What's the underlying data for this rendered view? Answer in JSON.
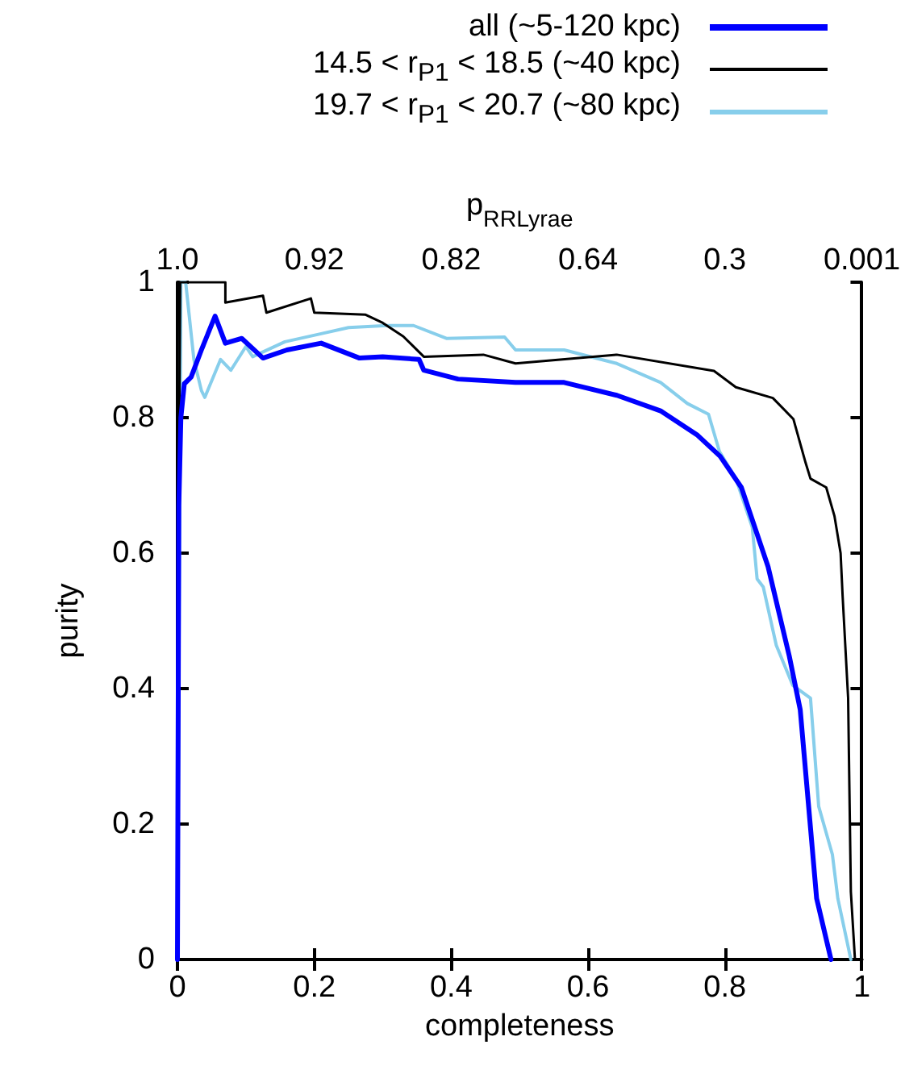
{
  "chart_data": {
    "type": "line",
    "xlabel": "completeness",
    "ylabel": "purity",
    "x2label": "p$_{RRLyrae}$",
    "xlim": [
      0,
      1
    ],
    "xticks": [
      0,
      0.2,
      0.4,
      0.6,
      0.8,
      1
    ],
    "ylim": [
      0,
      1
    ],
    "yticks": [
      0,
      0.2,
      0.4,
      0.6,
      0.8,
      1
    ],
    "annotations": [
      "1.0",
      "0.92",
      "0.82",
      "0.64",
      "0.3",
      "0.001"
    ],
    "legend": "top right",
    "grid": false,
    "marker": "none",
    "line_style": "solid",
    "series": [
      {
        "name": "all (~5-120 kpc)",
        "color": "#0000ff",
        "x": [
          0,
          0.002,
          0.005,
          0.01,
          0.02,
          0.035,
          0.055,
          0.07,
          0.094,
          0.125,
          0.16,
          0.21,
          0.266,
          0.3,
          0.353,
          0.36,
          0.41,
          0.494,
          0.565,
          0.642,
          0.706,
          0.76,
          0.793,
          0.824,
          0.863,
          0.894,
          0.91,
          0.934,
          0.955
        ],
        "values": [
          0,
          0.67,
          0.8,
          0.85,
          0.86,
          0.9,
          0.95,
          0.91,
          0.917,
          0.888,
          0.9,
          0.91,
          0.888,
          0.89,
          0.886,
          0.87,
          0.857,
          0.852,
          0.852,
          0.833,
          0.81,
          0.774,
          0.743,
          0.697,
          0.58,
          0.448,
          0.369,
          0.09,
          0
        ]
      },
      {
        "name": "14.5 < r$_{P1}$ < 18.5 (~40 kpc)",
        "color": "#000000",
        "x": [
          0,
          0.002,
          0.004,
          0.07,
          0.07,
          0.125,
          0.13,
          0.195,
          0.2,
          0.275,
          0.3,
          0.33,
          0.36,
          0.447,
          0.494,
          0.642,
          0.784,
          0.816,
          0.87,
          0.9,
          0.918,
          0.925,
          0.948,
          0.96,
          0.969,
          0.972,
          0.98,
          0.984,
          0.99
        ],
        "values": [
          0,
          0.7,
          1,
          1,
          0.97,
          0.98,
          0.955,
          0.976,
          0.955,
          0.952,
          0.94,
          0.92,
          0.89,
          0.893,
          0.88,
          0.893,
          0.869,
          0.845,
          0.829,
          0.798,
          0.733,
          0.71,
          0.697,
          0.655,
          0.6,
          0.536,
          0.386,
          0.1,
          0
        ]
      },
      {
        "name": "19.7 < r$_{P1}$ < 20.7 (~80 kpc)",
        "color": "#87ceeb",
        "x": [
          0,
          0.003,
          0.005,
          0.012,
          0.024,
          0.035,
          0.04,
          0.063,
          0.078,
          0.1,
          0.11,
          0.157,
          0.21,
          0.25,
          0.306,
          0.345,
          0.393,
          0.478,
          0.494,
          0.565,
          0.642,
          0.706,
          0.745,
          0.776,
          0.792,
          0.816,
          0.84,
          0.847,
          0.856,
          0.875,
          0.899,
          0.925,
          0.937,
          0.957,
          0.965,
          0.984
        ],
        "values": [
          0,
          0.6,
          1,
          1,
          0.886,
          0.84,
          0.83,
          0.886,
          0.87,
          0.905,
          0.89,
          0.912,
          0.924,
          0.933,
          0.936,
          0.936,
          0.917,
          0.919,
          0.9,
          0.9,
          0.88,
          0.852,
          0.821,
          0.805,
          0.75,
          0.71,
          0.638,
          0.562,
          0.55,
          0.464,
          0.405,
          0.386,
          0.226,
          0.155,
          0.09,
          0
        ]
      }
    ]
  }
}
